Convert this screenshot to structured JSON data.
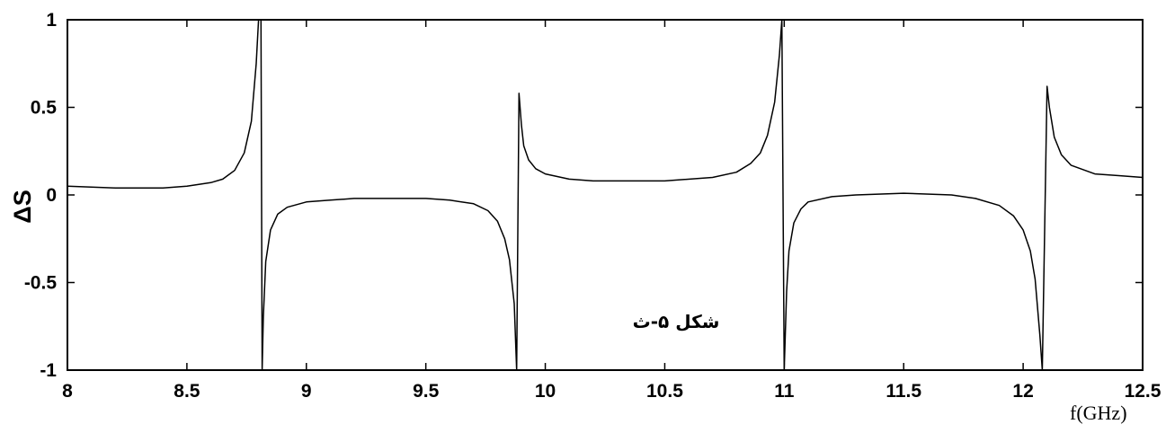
{
  "chart_data": {
    "type": "line",
    "title": "",
    "xlabel": "f(GHz)",
    "ylabel": "ΔS",
    "xlim": [
      8,
      12.5
    ],
    "ylim": [
      -1,
      1
    ],
    "grid": false,
    "legend": "none",
    "xticks": [
      8,
      8.5,
      9,
      9.5,
      10,
      10.5,
      11,
      11.5,
      12,
      12.5
    ],
    "xtick_labels": [
      "8",
      "8.5",
      "9",
      "9.5",
      "10",
      "10.5",
      "11",
      "11.5",
      "12",
      "12.5"
    ],
    "yticks": [
      -1,
      -0.5,
      0,
      0.5,
      1
    ],
    "ytick_labels": [
      "-1",
      "-0.5",
      "0",
      "0.5",
      "1"
    ],
    "annotation": "شکل ۵-ث",
    "line_color": "#000000",
    "series": [
      {
        "x": [
          8.0,
          8.2,
          8.4,
          8.5,
          8.6,
          8.65,
          8.7,
          8.74,
          8.77,
          8.79,
          8.8,
          8.805,
          8.81,
          8.815,
          8.82,
          8.83,
          8.85,
          8.88,
          8.92,
          9.0,
          9.1,
          9.2,
          9.3,
          9.4,
          9.5,
          9.6,
          9.7,
          9.76,
          9.8,
          9.83,
          9.85,
          9.87,
          9.88,
          9.89,
          9.9,
          9.91,
          9.93,
          9.96,
          10.0,
          10.1,
          10.2,
          10.3,
          10.5,
          10.7,
          10.8,
          10.86,
          10.9,
          10.93,
          10.96,
          10.98,
          10.99,
          11.0,
          11.01,
          11.02,
          11.04,
          11.07,
          11.1,
          11.2,
          11.3,
          11.5,
          11.7,
          11.8,
          11.9,
          11.96,
          12.0,
          12.03,
          12.05,
          12.07,
          12.08,
          12.1,
          12.11,
          12.13,
          12.16,
          12.2,
          12.3,
          12.4,
          12.5
        ],
        "y": [
          0.05,
          0.04,
          0.04,
          0.05,
          0.07,
          0.09,
          0.14,
          0.24,
          0.42,
          0.75,
          1.0,
          1.0,
          1.0,
          -1.0,
          -0.7,
          -0.38,
          -0.2,
          -0.11,
          -0.07,
          -0.04,
          -0.03,
          -0.02,
          -0.02,
          -0.02,
          -0.02,
          -0.03,
          -0.05,
          -0.09,
          -0.15,
          -0.25,
          -0.37,
          -0.62,
          -1.0,
          0.58,
          0.4,
          0.28,
          0.2,
          0.15,
          0.12,
          0.09,
          0.08,
          0.08,
          0.08,
          0.1,
          0.13,
          0.18,
          0.24,
          0.34,
          0.53,
          0.8,
          1.0,
          -1.0,
          -0.55,
          -0.32,
          -0.16,
          -0.08,
          -0.04,
          -0.01,
          0.0,
          0.01,
          0.0,
          -0.02,
          -0.06,
          -0.12,
          -0.2,
          -0.32,
          -0.48,
          -0.8,
          -1.0,
          0.62,
          0.5,
          0.33,
          0.23,
          0.17,
          0.12,
          0.11,
          0.1
        ]
      }
    ]
  }
}
